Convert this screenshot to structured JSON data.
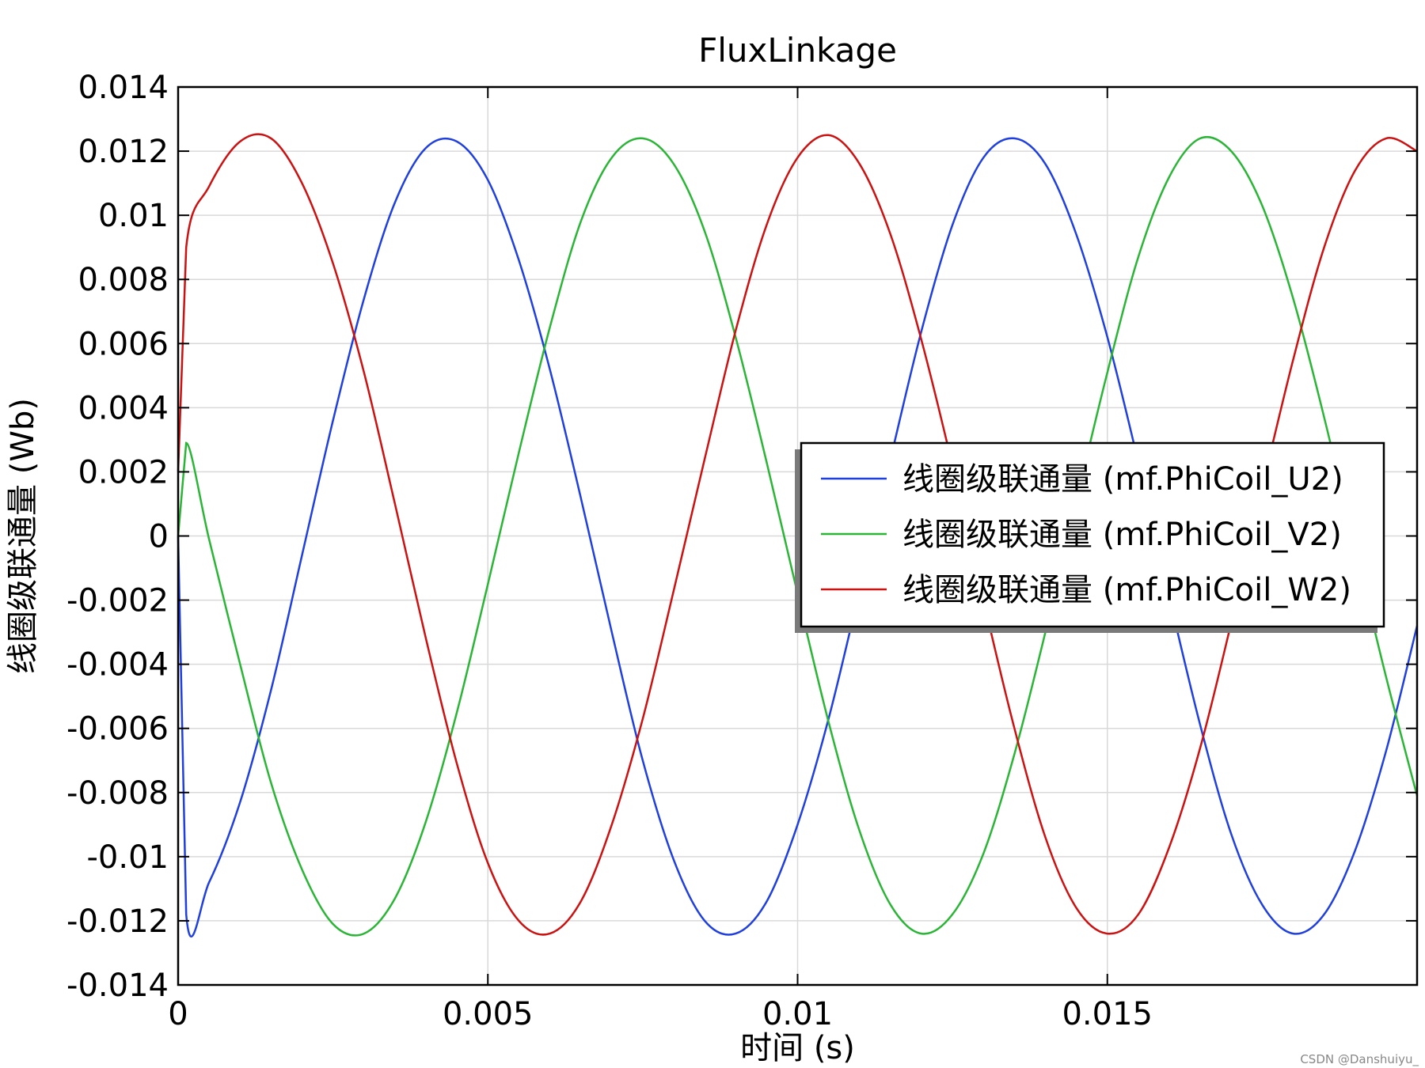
{
  "chart_data": {
    "type": "line",
    "title": "FluxLinkage",
    "xlabel": "时间 (s)",
    "ylabel": "线圈级联通量 (Wb)",
    "xlim": [
      0,
      0.02
    ],
    "ylim": [
      -0.014,
      0.014
    ],
    "x_ticks": [
      0,
      0.005,
      0.01,
      0.015
    ],
    "x_tick_labels": [
      "0",
      "0.005",
      "0.01",
      "0.015"
    ],
    "y_ticks": [
      -0.014,
      -0.012,
      -0.01,
      -0.008,
      -0.006,
      -0.004,
      -0.002,
      0,
      0.002,
      0.004,
      0.006,
      0.008,
      0.01,
      0.012,
      0.014
    ],
    "y_tick_labels": [
      "-0.014",
      "-0.012",
      "-0.01",
      "-0.008",
      "-0.006",
      "-0.004",
      "-0.002",
      "0",
      "0.002",
      "0.004",
      "0.006",
      "0.008",
      "0.01",
      "0.012",
      "0.014"
    ],
    "grid": true,
    "legend_position": "right-center",
    "x": [
      0,
      0.00013,
      0.0005,
      0.001,
      0.0015,
      0.002,
      0.0025,
      0.003,
      0.0035,
      0.004,
      0.0045,
      0.005,
      0.0055,
      0.006,
      0.0065,
      0.007,
      0.0075,
      0.008,
      0.0085,
      0.009,
      0.0095,
      0.01,
      0.0105,
      0.011,
      0.0115,
      0.012,
      0.0125,
      0.013,
      0.0135,
      0.014,
      0.0145,
      0.015,
      0.0155,
      0.016,
      0.0165,
      0.017,
      0.0175,
      0.018,
      0.0185,
      0.019,
      0.0195,
      0.02
    ],
    "series": [
      {
        "name": "线圈级联通量 (mf.PhiCoil_U2)",
        "color": "#1f3fdf",
        "values": [
          0,
          -0.0118,
          -0.0108,
          -0.0083,
          -0.0048,
          -0.0006,
          0.0036,
          0.0074,
          0.0104,
          0.0121,
          0.0123,
          0.0111,
          0.0086,
          0.0052,
          0.0012,
          -0.003,
          -0.007,
          -0.0101,
          -0.012,
          -0.0124,
          -0.0114,
          -0.009,
          -0.0057,
          -0.0017,
          0.0024,
          0.0064,
          0.0097,
          0.0118,
          0.0124,
          0.0116,
          0.0094,
          0.0062,
          0.0023,
          -0.0019,
          -0.0059,
          -0.0093,
          -0.0115,
          -0.0124,
          -0.0118,
          -0.0098,
          -0.0067,
          -0.0028
        ]
      },
      {
        "name": "线圈级联通量 (mf.PhiCoil_V2)",
        "color": "#2bb536",
        "values": [
          0,
          0.0029,
          -0.0001,
          -0.004,
          -0.0077,
          -0.0104,
          -0.0121,
          -0.0124,
          -0.0113,
          -0.0089,
          -0.0055,
          -0.0015,
          0.0026,
          0.0065,
          0.0098,
          0.0118,
          0.0124,
          0.0116,
          0.0095,
          0.0062,
          0.0023,
          -0.0018,
          -0.0058,
          -0.0092,
          -0.0115,
          -0.0124,
          -0.0118,
          -0.0099,
          -0.0068,
          -0.003,
          0.0011,
          0.0051,
          0.0087,
          0.0112,
          0.0124,
          0.012,
          0.0103,
          0.0074,
          0.0037,
          -0.0004,
          -0.0044,
          -0.0081
        ]
      },
      {
        "name": "线圈级联通量 (mf.PhiCoil_W2)",
        "color": "#cc1111",
        "values": [
          0.002,
          0.009,
          0.0109,
          0.0123,
          0.0124,
          0.011,
          0.0085,
          0.0051,
          0.001,
          -0.0032,
          -0.0071,
          -0.0102,
          -0.012,
          -0.0124,
          -0.0114,
          -0.009,
          -0.0057,
          -0.0017,
          0.0024,
          0.0064,
          0.0097,
          0.0118,
          0.0125,
          0.0116,
          0.0094,
          0.0061,
          0.0022,
          -0.002,
          -0.006,
          -0.0094,
          -0.0116,
          -0.0124,
          -0.0118,
          -0.0097,
          -0.0066,
          -0.0027,
          0.0015,
          0.0055,
          0.009,
          0.0114,
          0.0124,
          0.012
        ]
      }
    ]
  },
  "watermark": "CSDN @Danshuiyu_"
}
